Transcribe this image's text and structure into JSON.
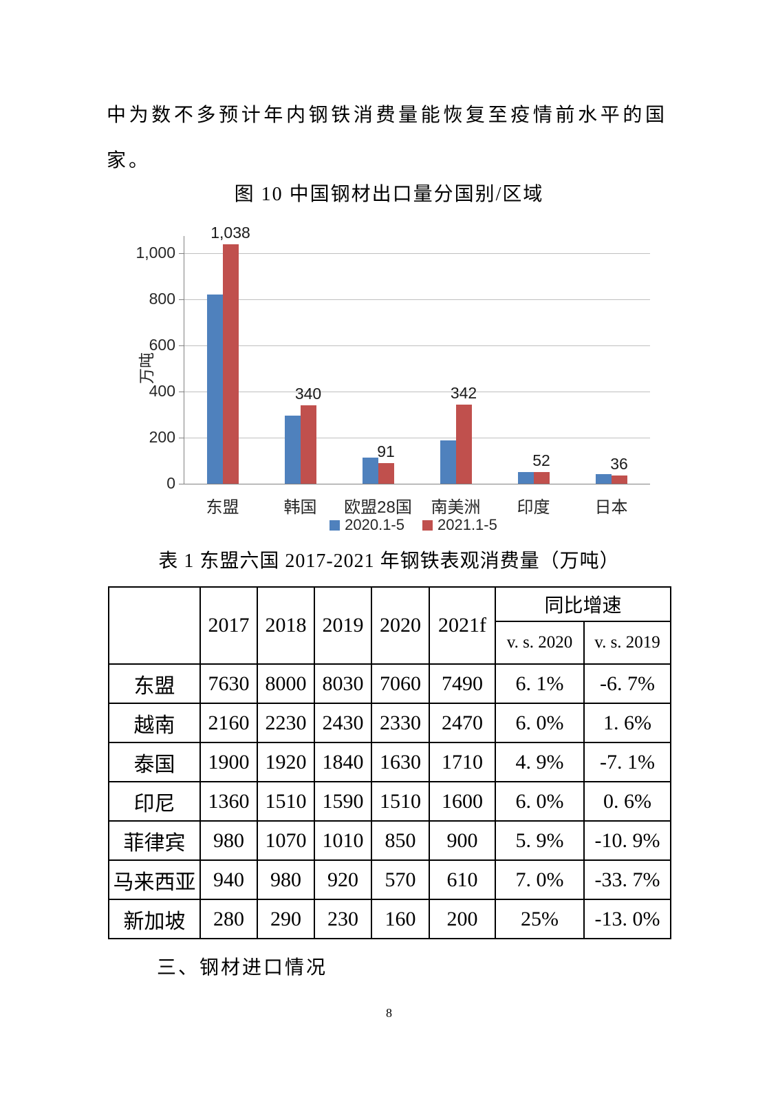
{
  "paragraph": "中为数不多预计年内钢铁消费量能恢复至疫情前水平的国家。",
  "figure_title": "图 10 中国钢材出口量分国别/区域",
  "chart_data": {
    "type": "bar",
    "title": "图 10 中国钢材出口量分国别/区域",
    "categories": [
      "东盟",
      "韩国",
      "欧盟28国",
      "南美洲",
      "印度",
      "日本"
    ],
    "series": [
      {
        "name": "2020.1-5",
        "color": "#4F81BD",
        "values": [
          820,
          295,
          113,
          188,
          51,
          42
        ]
      },
      {
        "name": "2021.1-5",
        "color": "#C0504D",
        "values": [
          1038,
          340,
          91,
          342,
          52,
          36
        ],
        "data_labels": [
          "1,038",
          "340",
          "91",
          "342",
          "52",
          "36"
        ]
      }
    ],
    "ylabel": "万吨",
    "ylim": [
      0,
      1000
    ],
    "ytick_step": 200,
    "grid": true,
    "legend_position": "bottom",
    "axis_color": "#808080",
    "grid_color": "#BFBFBF",
    "label_color": "#262626"
  },
  "table": {
    "title": "表 1 东盟六国 2017-2021 年钢铁表观消费量（万吨）",
    "year_headers": [
      "2017",
      "2018",
      "2019",
      "2020",
      "2021f"
    ],
    "growth_header": "同比增速",
    "growth_subheaders": [
      "v. s. 2020",
      "v. s. 2019"
    ],
    "rows": [
      {
        "label": "东盟",
        "values": [
          "7630",
          "8000",
          "8030",
          "7060",
          "7490"
        ],
        "growth": [
          "6. 1%",
          "-6. 7%"
        ]
      },
      {
        "label": "越南",
        "values": [
          "2160",
          "2230",
          "2430",
          "2330",
          "2470"
        ],
        "growth": [
          "6. 0%",
          "1. 6%"
        ]
      },
      {
        "label": "泰国",
        "values": [
          "1900",
          "1920",
          "1840",
          "1630",
          "1710"
        ],
        "growth": [
          "4. 9%",
          "-7. 1%"
        ]
      },
      {
        "label": "印尼",
        "values": [
          "1360",
          "1510",
          "1590",
          "1510",
          "1600"
        ],
        "growth": [
          "6. 0%",
          "0. 6%"
        ]
      },
      {
        "label": "菲律宾",
        "values": [
          "980",
          "1070",
          "1010",
          "850",
          "900"
        ],
        "growth": [
          "5. 9%",
          "-10. 9%"
        ]
      },
      {
        "label": "马来西亚",
        "values": [
          "940",
          "980",
          "920",
          "570",
          "610"
        ],
        "growth": [
          "7. 0%",
          "-33. 7%"
        ]
      },
      {
        "label": "新加坡",
        "values": [
          "280",
          "290",
          "230",
          "160",
          "200"
        ],
        "growth": [
          "25%",
          "-13. 0%"
        ]
      }
    ]
  },
  "section_heading": "三、钢材进口情况",
  "page_number": "8"
}
